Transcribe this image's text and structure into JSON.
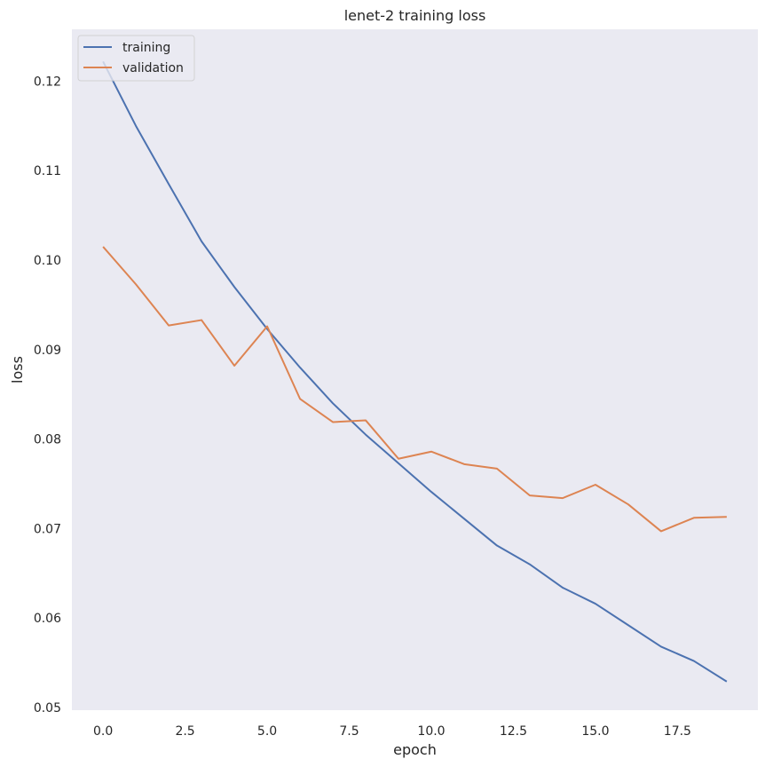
{
  "chart_data": {
    "type": "line",
    "title": "lenet-2 training loss",
    "xlabel": "epoch",
    "ylabel": "loss",
    "xlim": [
      -0.95,
      19.95
    ],
    "ylim": [
      0.0497,
      0.1258
    ],
    "xticks": [
      0.0,
      2.5,
      5.0,
      7.5,
      10.0,
      12.5,
      15.0,
      17.5
    ],
    "xtick_labels": [
      "0.0",
      "2.5",
      "5.0",
      "7.5",
      "10.0",
      "12.5",
      "15.0",
      "17.5"
    ],
    "yticks": [
      0.05,
      0.06,
      0.07,
      0.08,
      0.09,
      0.1,
      0.11,
      0.12
    ],
    "ytick_labels": [
      "0.05",
      "0.06",
      "0.07",
      "0.08",
      "0.09",
      "0.10",
      "0.11",
      "0.12"
    ],
    "grid": false,
    "legend_position": "upper-left",
    "x": [
      0,
      1,
      2,
      3,
      4,
      5,
      6,
      7,
      8,
      9,
      10,
      11,
      12,
      13,
      14,
      15,
      16,
      17,
      18,
      19
    ],
    "series": [
      {
        "name": "training",
        "color": "#4c72b0",
        "values": [
          0.1222,
          0.115,
          0.1085,
          0.1021,
          0.097,
          0.0923,
          0.088,
          0.084,
          0.0805,
          0.0773,
          0.0741,
          0.0711,
          0.0681,
          0.066,
          0.0634,
          0.0616,
          0.0592,
          0.0568,
          0.0552,
          0.0529
        ]
      },
      {
        "name": "validation",
        "color": "#dd8452",
        "values": [
          0.1015,
          0.0973,
          0.0927,
          0.0933,
          0.0882,
          0.0926,
          0.0845,
          0.0819,
          0.0821,
          0.0778,
          0.0786,
          0.0772,
          0.0767,
          0.0737,
          0.0734,
          0.0749,
          0.0727,
          0.0697,
          0.0712,
          0.0713
        ]
      }
    ]
  }
}
